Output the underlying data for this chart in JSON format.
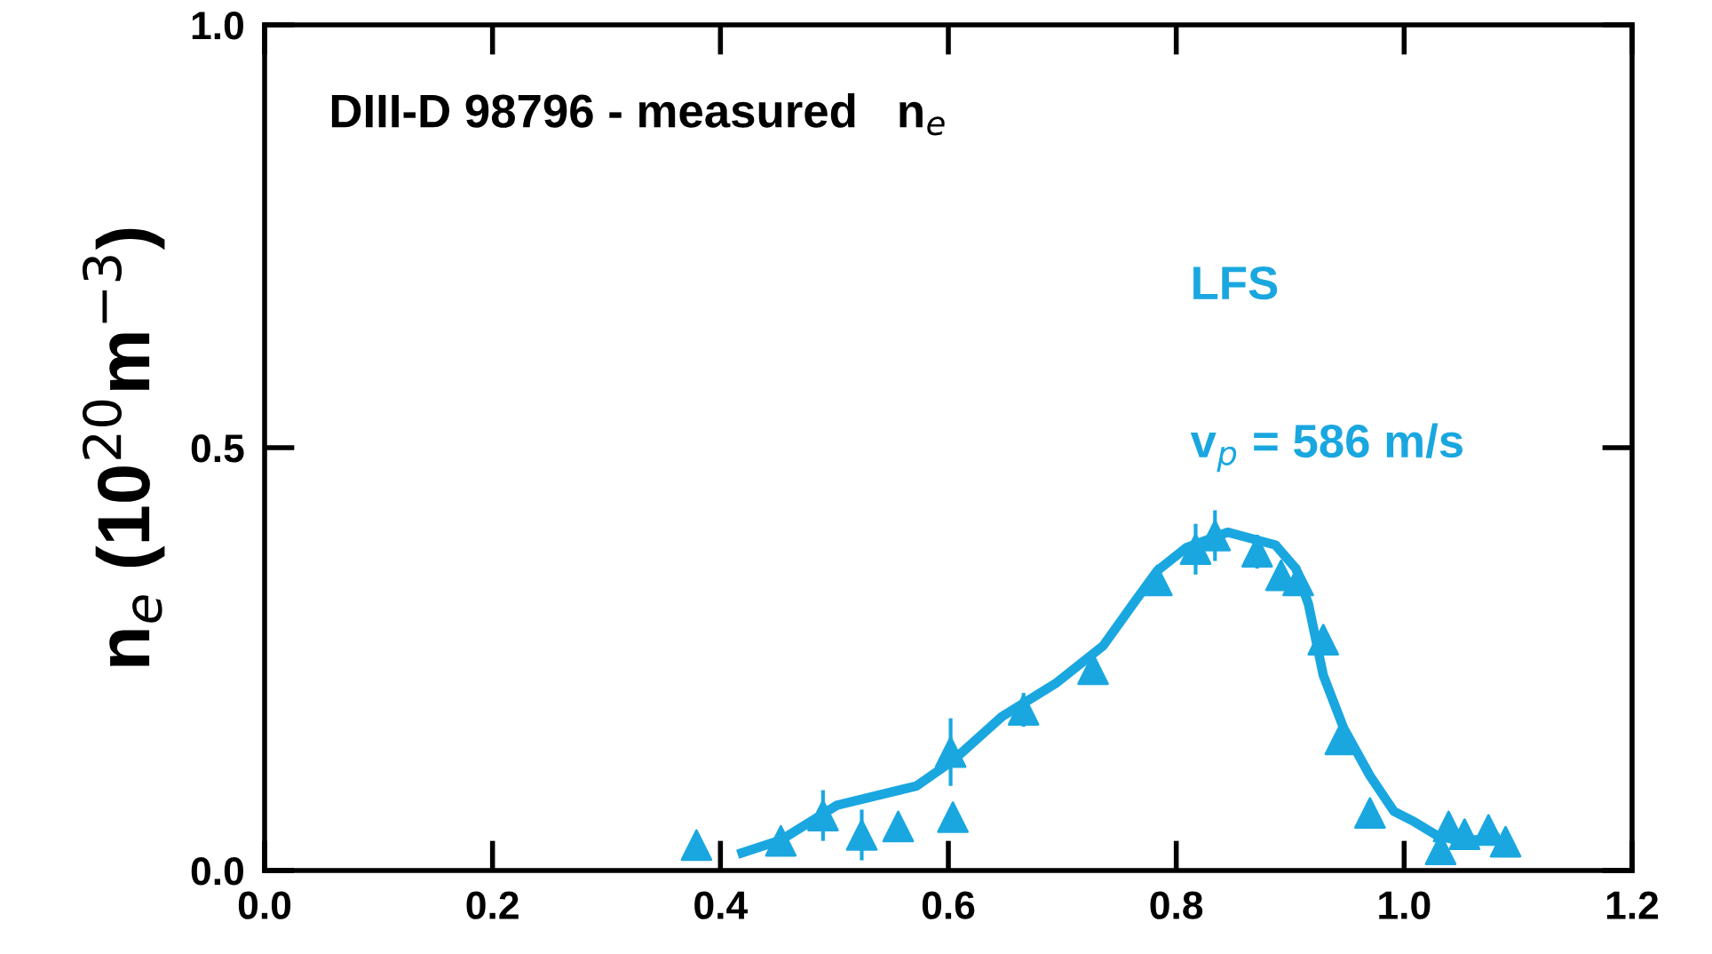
{
  "chart_data": {
    "type": "scatter",
    "title": "DIII-D 98796 - measured   n$_{e}$",
    "ylabel": "n$_{e}$ (10$^{20}$m$^{−3}$)",
    "annotations": [
      "LFS",
      "v$_{p}$ = 586 m/s"
    ],
    "xlim": [
      0.0,
      1.2
    ],
    "xticks": [
      {
        "value": 0.0,
        "label": "0.0"
      },
      0.2,
      0.4,
      0.6,
      0.8,
      {
        "value": 1.0,
        "label": "1.0"
      },
      1.2
    ],
    "ylim": [
      0.0,
      1.0
    ],
    "yticks": [
      {
        "value": 0.0,
        "label": "0.0"
      },
      0.5,
      {
        "value": 1.0,
        "label": "1.0"
      }
    ],
    "grid": false,
    "legend": false,
    "series": [
      {
        "color": "#1aa7e0",
        "marker": "triangle",
        "x": [
          0.379,
          0.453,
          0.49,
          0.524,
          0.556,
          0.604,
          0.602,
          0.666,
          0.727,
          0.783,
          0.817,
          0.834,
          0.871,
          0.892,
          0.907,
          0.929,
          0.944,
          0.97,
          1.032,
          1.039,
          1.053,
          1.074,
          1.089
        ],
        "values": [
          0.03,
          0.035,
          0.065,
          0.042,
          0.052,
          0.063,
          0.14,
          0.19,
          0.238,
          0.343,
          0.38,
          0.396,
          0.377,
          0.349,
          0.343,
          0.273,
          0.155,
          0.068,
          0.025,
          0.052,
          0.043,
          0.048,
          0.034
        ],
        "errors": [
          null,
          null,
          0.03,
          0.03,
          null,
          null,
          0.04,
          0.02,
          null,
          null,
          0.03,
          0.03,
          0.02,
          null,
          null,
          null,
          null,
          null,
          null,
          null,
          null,
          null,
          null
        ]
      },
      {
        "type": "line",
        "color": "#1aa7e0",
        "marker": "none",
        "line_style": "solid",
        "x": [
          0.419,
          0.453,
          0.502,
          0.572,
          0.604,
          0.647,
          0.694,
          0.736,
          0.762,
          0.783,
          0.809,
          0.845,
          0.887,
          0.905,
          0.916,
          0.929,
          0.947,
          0.97,
          0.991,
          1.007,
          1.028,
          1.048,
          1.08
        ],
        "values": [
          0.021,
          0.036,
          0.077,
          0.1,
          0.13,
          0.182,
          0.221,
          0.266,
          0.315,
          0.354,
          0.382,
          0.4,
          0.385,
          0.357,
          0.315,
          0.231,
          0.168,
          0.112,
          0.07,
          0.059,
          0.042,
          0.035,
          0.038
        ]
      }
    ]
  }
}
